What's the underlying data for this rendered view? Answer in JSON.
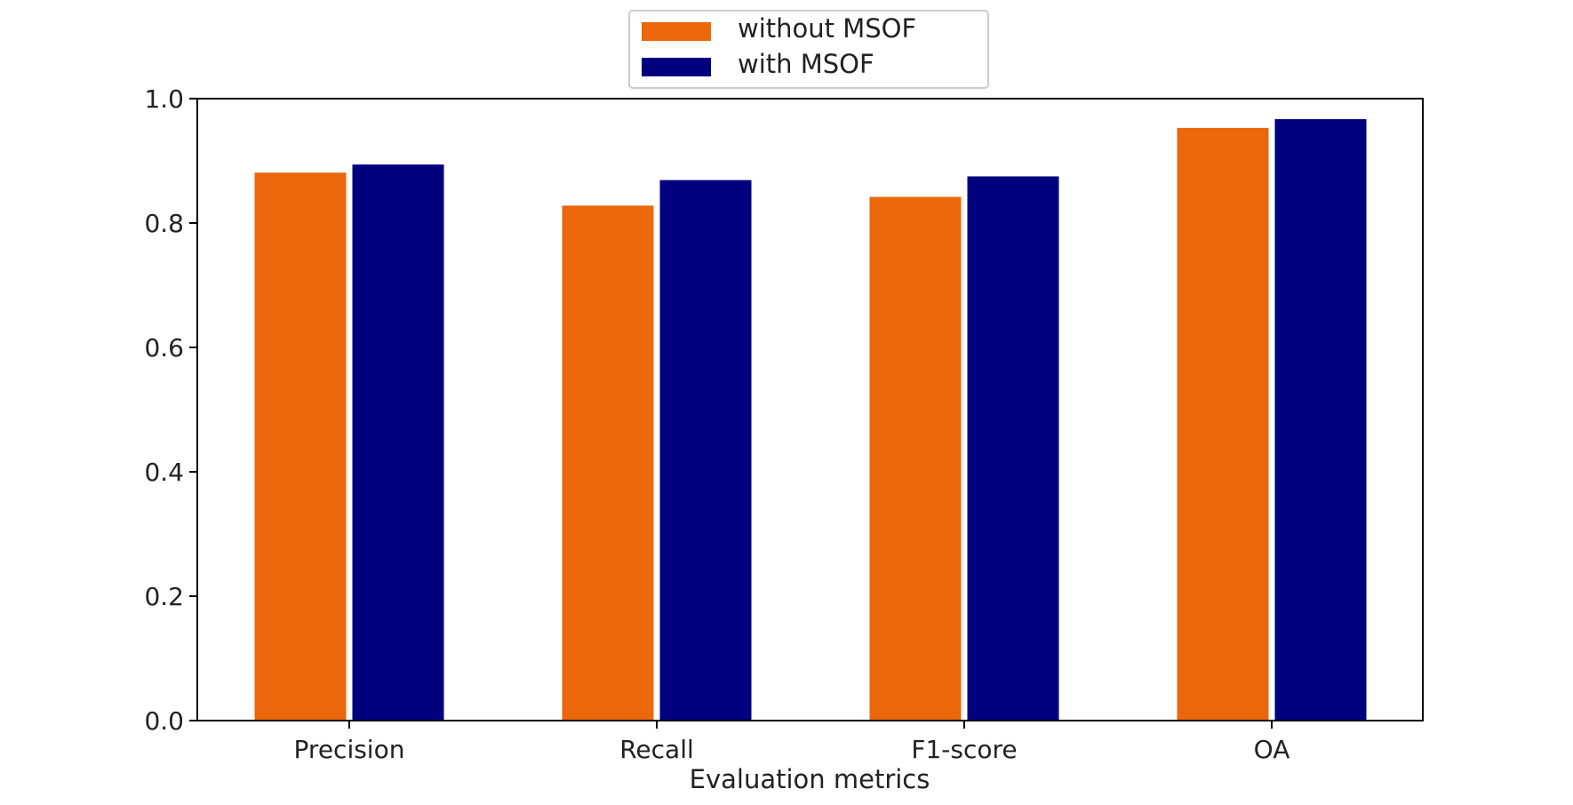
{
  "chart_data": {
    "type": "bar",
    "title": "",
    "xlabel": "Evaluation metrics",
    "ylabel": "",
    "categories": [
      "Precision",
      "Recall",
      "F1-score",
      "OA"
    ],
    "series": [
      {
        "name": "without MSOF",
        "color": "#ea670c",
        "values": [
          0.881,
          0.828,
          0.842,
          0.953
        ]
      },
      {
        "name": "with MSOF",
        "color": "#00007f",
        "values": [
          0.894,
          0.869,
          0.875,
          0.967
        ]
      }
    ],
    "ylim": [
      0,
      1.0
    ],
    "yticks": [
      "0.0",
      "0.2",
      "0.4",
      "0.6",
      "0.8",
      "1.0"
    ],
    "grid": false,
    "legend_position": "top-center"
  }
}
